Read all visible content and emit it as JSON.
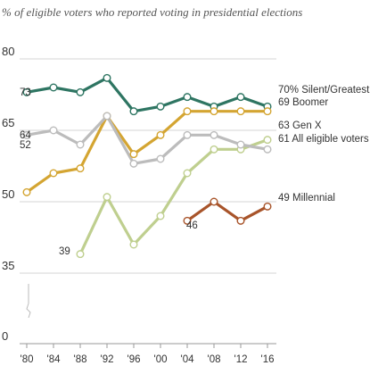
{
  "chart_data": {
    "type": "line",
    "title": "% of eligible voters who reported voting in presidential elections",
    "x": [
      "'80",
      "'84",
      "'88",
      "'92",
      "'96",
      "'00",
      "'04",
      "'08",
      "'12",
      "'16"
    ],
    "y_ticks": [
      0,
      35,
      50,
      65,
      80
    ],
    "ylim": [
      0,
      80
    ],
    "axis_break": true,
    "grid": true,
    "series": [
      {
        "name": "Silent/Greatest",
        "label": "70% Silent/Greatest",
        "color": "#2e7562",
        "values": [
          73,
          74,
          73,
          76,
          69,
          70,
          72,
          70,
          72,
          70
        ],
        "start_label": "73"
      },
      {
        "name": "Boomer",
        "label": "69 Boomer",
        "color": "#d4a532",
        "values": [
          52,
          56,
          57,
          68,
          60,
          64,
          69,
          69,
          69,
          69
        ],
        "start_label": "52"
      },
      {
        "name": "Gen X",
        "label": "63 Gen X",
        "color": "#bfcf8f",
        "values": [
          null,
          null,
          39,
          51,
          41,
          47,
          56,
          61,
          61,
          63
        ],
        "start_label": "39"
      },
      {
        "name": "All eligible voters",
        "label": "61 All eligible voters",
        "color": "#bcbcbc",
        "values": [
          64,
          65,
          62,
          68,
          58,
          59,
          64,
          64,
          62,
          61
        ],
        "start_label": "64"
      },
      {
        "name": "Millennial",
        "label": "49 Millennial",
        "color": "#a8542a",
        "values": [
          null,
          null,
          null,
          null,
          null,
          null,
          46,
          50,
          46,
          49
        ],
        "start_label": "46"
      }
    ]
  }
}
